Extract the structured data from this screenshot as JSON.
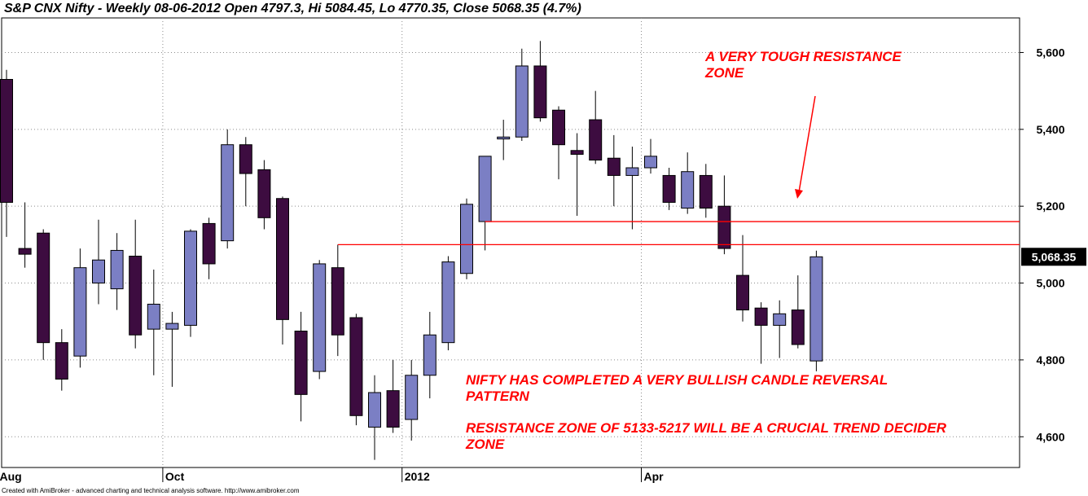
{
  "chart_data": {
    "type": "candlestick",
    "title": "S&P CNX Nifty - Weekly 08-06-2012 Open 4797.3, Hi 5084.45, Lo 4770.35, Close 5068.35 (4.7%)",
    "y_ticks": [
      {
        "value": 4600,
        "label": "4,600"
      },
      {
        "value": 4800,
        "label": "4,800"
      },
      {
        "value": 5000,
        "label": "5,000"
      },
      {
        "value": 5200,
        "label": "5,200"
      },
      {
        "value": 5400,
        "label": "5,400"
      },
      {
        "value": 5600,
        "label": "5,600"
      }
    ],
    "ylim": [
      4520,
      5690
    ],
    "last_price_label": "5,068.35",
    "x_labels": [
      {
        "bar": 0,
        "label": "Aug"
      },
      {
        "bar": 9,
        "label": "Oct"
      },
      {
        "bar": 22,
        "label": "2012"
      },
      {
        "bar": 35,
        "label": "Apr"
      }
    ],
    "grid": true,
    "bullish_color": "#7b7fc4",
    "bearish_color": "#3d0c40",
    "candles": [
      {
        "o": 5530,
        "h": 5555,
        "l": 5120,
        "c": 5210
      },
      {
        "o": 5090,
        "h": 5210,
        "l": 5040,
        "c": 5075
      },
      {
        "o": 5130,
        "h": 5140,
        "l": 4800,
        "c": 4845
      },
      {
        "o": 4845,
        "h": 4880,
        "l": 4720,
        "c": 4750
      },
      {
        "o": 4810,
        "h": 5090,
        "l": 4780,
        "c": 5040
      },
      {
        "o": 5000,
        "h": 5165,
        "l": 4945,
        "c": 5060
      },
      {
        "o": 4985,
        "h": 5130,
        "l": 4930,
        "c": 5085
      },
      {
        "o": 5070,
        "h": 5165,
        "l": 4830,
        "c": 4865
      },
      {
        "o": 4880,
        "h": 5035,
        "l": 4760,
        "c": 4945
      },
      {
        "o": 4880,
        "h": 4925,
        "l": 4730,
        "c": 4895
      },
      {
        "o": 4890,
        "h": 5140,
        "l": 4860,
        "c": 5135
      },
      {
        "o": 5155,
        "h": 5170,
        "l": 5010,
        "c": 5050
      },
      {
        "o": 5110,
        "h": 5400,
        "l": 5090,
        "c": 5360
      },
      {
        "o": 5360,
        "h": 5380,
        "l": 5200,
        "c": 5285
      },
      {
        "o": 5295,
        "h": 5320,
        "l": 5140,
        "c": 5170
      },
      {
        "o": 5220,
        "h": 5225,
        "l": 4840,
        "c": 4905
      },
      {
        "o": 4875,
        "h": 4925,
        "l": 4640,
        "c": 4710
      },
      {
        "o": 4770,
        "h": 5060,
        "l": 4750,
        "c": 5050
      },
      {
        "o": 5040,
        "h": 5100,
        "l": 4810,
        "c": 4865
      },
      {
        "o": 4910,
        "h": 4920,
        "l": 4630,
        "c": 4655
      },
      {
        "o": 4625,
        "h": 4760,
        "l": 4540,
        "c": 4715
      },
      {
        "o": 4720,
        "h": 4800,
        "l": 4610,
        "c": 4625
      },
      {
        "o": 4645,
        "h": 4800,
        "l": 4590,
        "c": 4760
      },
      {
        "o": 4760,
        "h": 4925,
        "l": 4700,
        "c": 4865
      },
      {
        "o": 4845,
        "h": 5070,
        "l": 4825,
        "c": 5055
      },
      {
        "o": 5025,
        "h": 5220,
        "l": 5010,
        "c": 5205
      },
      {
        "o": 5160,
        "h": 5330,
        "l": 5085,
        "c": 5330
      },
      {
        "o": 5375,
        "h": 5425,
        "l": 5320,
        "c": 5380
      },
      {
        "o": 5380,
        "h": 5610,
        "l": 5370,
        "c": 5565
      },
      {
        "o": 5565,
        "h": 5630,
        "l": 5420,
        "c": 5430
      },
      {
        "o": 5450,
        "h": 5460,
        "l": 5270,
        "c": 5360
      },
      {
        "o": 5345,
        "h": 5390,
        "l": 5175,
        "c": 5335
      },
      {
        "o": 5425,
        "h": 5500,
        "l": 5310,
        "c": 5320
      },
      {
        "o": 5325,
        "h": 5385,
        "l": 5200,
        "c": 5280
      },
      {
        "o": 5280,
        "h": 5355,
        "l": 5140,
        "c": 5300
      },
      {
        "o": 5300,
        "h": 5375,
        "l": 5285,
        "c": 5330
      },
      {
        "o": 5280,
        "h": 5300,
        "l": 5190,
        "c": 5210
      },
      {
        "o": 5195,
        "h": 5340,
        "l": 5180,
        "c": 5290
      },
      {
        "o": 5280,
        "h": 5310,
        "l": 5170,
        "c": 5195
      },
      {
        "o": 5200,
        "h": 5280,
        "l": 5075,
        "c": 5090
      },
      {
        "o": 5020,
        "h": 5125,
        "l": 4900,
        "c": 4930
      },
      {
        "o": 4935,
        "h": 4950,
        "l": 4790,
        "c": 4890
      },
      {
        "o": 4890,
        "h": 4955,
        "l": 4805,
        "c": 4920
      },
      {
        "o": 4930,
        "h": 5020,
        "l": 4830,
        "c": 4840
      },
      {
        "o": 4797.3,
        "h": 5084.45,
        "l": 4770.35,
        "c": 5068.35
      }
    ],
    "resistance_lines": [
      {
        "value": 5160,
        "from_bar": 26
      },
      {
        "value": 5100,
        "from_bar": 18
      }
    ],
    "annotations": {
      "tough_zone": [
        "A VERY TOUGH RESISTANCE",
        "ZONE"
      ],
      "bullish": [
        "NIFTY HAS COMPLETED A VERY BULLISH CANDLE REVERSAL",
        "PATTERN"
      ],
      "decider": [
        "RESISTANCE ZONE OF 5133-5217 WILL BE A CRUCIAL TREND DECIDER",
        "ZONE"
      ]
    },
    "footer": "Created with AmiBroker - advanced charting and technical analysis software. http://www.amibroker.com"
  }
}
